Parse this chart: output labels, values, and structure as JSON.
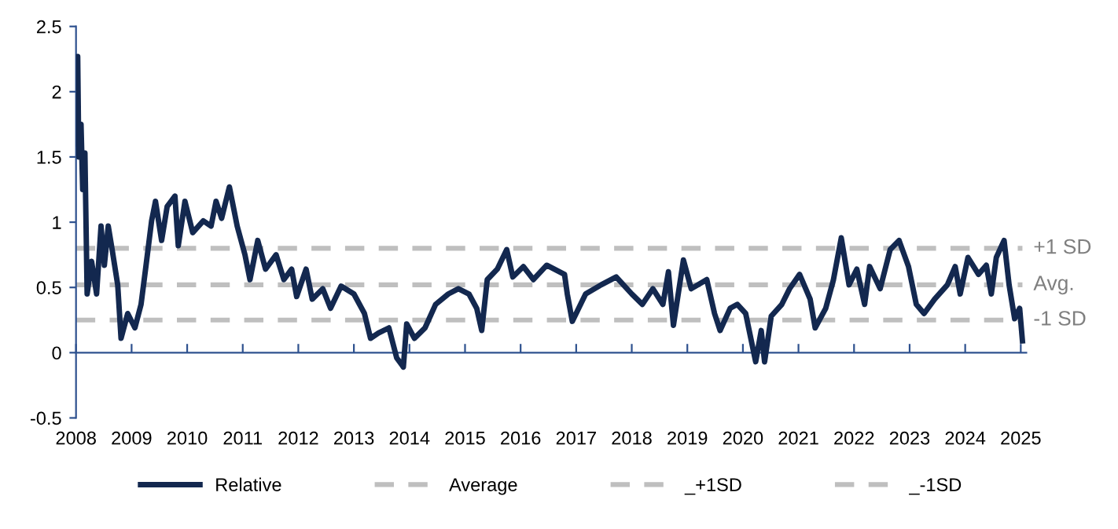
{
  "chart_data": {
    "type": "line",
    "xlim": [
      2008,
      2025.1
    ],
    "xticks": [
      2008,
      2009,
      2010,
      2011,
      2012,
      2013,
      2014,
      2015,
      2016,
      2017,
      2018,
      2019,
      2020,
      2021,
      2022,
      2023,
      2024,
      2025
    ],
    "ylim": [
      -0.5,
      2.5
    ],
    "yticks": [
      -0.5,
      0,
      0.5,
      1,
      1.5,
      2,
      2.5
    ],
    "grid": false,
    "legend": "bottom",
    "series": [
      {
        "name": "Relative",
        "color": "#13284f",
        "line_style": "solid",
        "x": [
          2008.0,
          2008.03,
          2008.05,
          2008.09,
          2008.12,
          2008.16,
          2008.2,
          2008.28,
          2008.37,
          2008.45,
          2008.51,
          2008.58,
          2008.65,
          2008.75,
          2008.81,
          2008.93,
          2009.06,
          2009.17,
          2009.26,
          2009.36,
          2009.43,
          2009.54,
          2009.64,
          2009.78,
          2009.84,
          2009.96,
          2010.1,
          2010.29,
          2010.43,
          2010.52,
          2010.62,
          2010.76,
          2010.9,
          2011.04,
          2011.13,
          2011.27,
          2011.41,
          2011.6,
          2011.74,
          2011.88,
          2011.97,
          2012.14,
          2012.25,
          2012.44,
          2012.58,
          2012.77,
          2013.0,
          2013.19,
          2013.3,
          2013.44,
          2013.63,
          2013.77,
          2013.89,
          2013.95,
          2014.09,
          2014.28,
          2014.47,
          2014.7,
          2014.88,
          2015.07,
          2015.21,
          2015.3,
          2015.4,
          2015.58,
          2015.75,
          2015.86,
          2016.05,
          2016.23,
          2016.47,
          2016.79,
          2016.84,
          2016.93,
          2017.17,
          2017.45,
          2017.72,
          2018.0,
          2018.19,
          2018.38,
          2018.56,
          2018.66,
          2018.75,
          2018.93,
          2019.07,
          2019.35,
          2019.49,
          2019.59,
          2019.77,
          2019.9,
          2020.05,
          2020.23,
          2020.33,
          2020.39,
          2020.51,
          2020.7,
          2020.84,
          2021.02,
          2021.21,
          2021.3,
          2021.49,
          2021.63,
          2021.77,
          2021.91,
          2022.05,
          2022.19,
          2022.28,
          2022.47,
          2022.65,
          2022.81,
          2022.98,
          2023.12,
          2023.26,
          2023.45,
          2023.68,
          2023.82,
          2023.91,
          2024.05,
          2024.24,
          2024.38,
          2024.47,
          2024.56,
          2024.7,
          2024.79,
          2024.89,
          2024.98,
          2025.03
        ],
        "values": [
          1.6,
          2.27,
          1.5,
          1.75,
          1.25,
          1.53,
          0.45,
          0.7,
          0.45,
          0.97,
          0.67,
          0.97,
          0.79,
          0.52,
          0.11,
          0.3,
          0.19,
          0.37,
          0.67,
          1.01,
          1.16,
          0.86,
          1.12,
          1.2,
          0.82,
          1.16,
          0.92,
          1.01,
          0.97,
          1.16,
          1.03,
          1.27,
          0.97,
          0.75,
          0.56,
          0.86,
          0.64,
          0.75,
          0.56,
          0.64,
          0.43,
          0.64,
          0.41,
          0.49,
          0.34,
          0.51,
          0.45,
          0.3,
          0.11,
          0.15,
          0.19,
          -0.04,
          -0.11,
          0.22,
          0.11,
          0.19,
          0.37,
          0.45,
          0.49,
          0.45,
          0.34,
          0.17,
          0.56,
          0.64,
          0.79,
          0.58,
          0.66,
          0.56,
          0.67,
          0.6,
          0.45,
          0.24,
          0.45,
          0.52,
          0.58,
          0.45,
          0.37,
          0.49,
          0.37,
          0.62,
          0.21,
          0.71,
          0.49,
          0.56,
          0.3,
          0.17,
          0.34,
          0.37,
          0.3,
          -0.07,
          0.17,
          -0.07,
          0.28,
          0.37,
          0.49,
          0.6,
          0.41,
          0.19,
          0.34,
          0.56,
          0.88,
          0.52,
          0.64,
          0.37,
          0.66,
          0.49,
          0.79,
          0.86,
          0.66,
          0.37,
          0.3,
          0.41,
          0.52,
          0.66,
          0.45,
          0.73,
          0.6,
          0.67,
          0.45,
          0.73,
          0.86,
          0.52,
          0.26,
          0.34,
          0.09
        ]
      },
      {
        "name": "Average",
        "color": "#bfbfbf",
        "line_style": "dashed",
        "x": [
          2008.0,
          2025.03
        ],
        "values": [
          0.52,
          0.52
        ]
      },
      {
        "name": "_+1SD",
        "color": "#bfbfbf",
        "line_style": "dashed",
        "x": [
          2008.0,
          2025.03
        ],
        "values": [
          0.8,
          0.8
        ]
      },
      {
        "name": "_-1SD",
        "color": "#bfbfbf",
        "line_style": "dashed",
        "x": [
          2008.0,
          2025.03
        ],
        "values": [
          0.25,
          0.25
        ]
      }
    ],
    "annotations": [
      "+1 SD",
      "Avg.",
      "-1 SD"
    ],
    "ref_lines": [
      {
        "axis": "y",
        "value": 0,
        "color": "#2f528f"
      }
    ]
  }
}
